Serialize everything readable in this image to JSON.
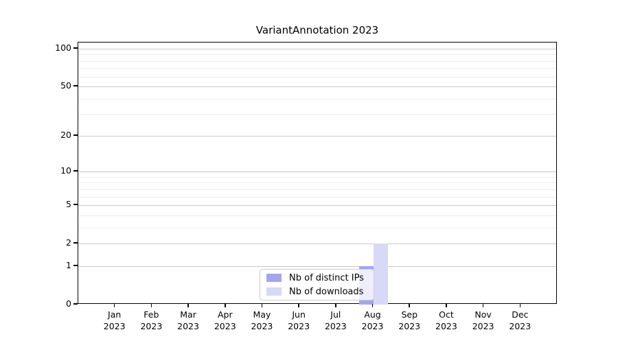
{
  "chart_data": {
    "type": "bar",
    "title": "VariantAnnotation 2023",
    "categories": [
      "Jan 2023",
      "Feb 2023",
      "Mar 2023",
      "Apr 2023",
      "May 2023",
      "Jun 2023",
      "Jul 2023",
      "Aug 2023",
      "Sep 2023",
      "Oct 2023",
      "Nov 2023",
      "Dec 2023"
    ],
    "series": [
      {
        "name": "Nb of distinct IPs",
        "color": "#a5a5ed",
        "values": [
          0,
          0,
          0,
          0,
          0,
          0,
          0,
          1,
          0,
          0,
          0,
          0
        ]
      },
      {
        "name": "Nb of downloads",
        "color": "#d8d8f7",
        "values": [
          0,
          0,
          0,
          0,
          0,
          0,
          0,
          2,
          0,
          0,
          0,
          0
        ]
      }
    ],
    "xlabel": "",
    "ylabel": "",
    "y_axis": {
      "scale": "log10(1+v)",
      "ticks": [
        0,
        1,
        2,
        5,
        10,
        20,
        50,
        100
      ],
      "minor_gridlines": [
        3,
        4,
        6,
        7,
        8,
        9,
        30,
        40,
        60,
        70,
        80,
        90
      ],
      "ylim": [
        0,
        113
      ]
    },
    "legend": {
      "position": "lower center"
    },
    "grid": {
      "major_color": "#c9c9c9",
      "minor_color": "#ececec"
    },
    "background_color": "#ffffff"
  }
}
